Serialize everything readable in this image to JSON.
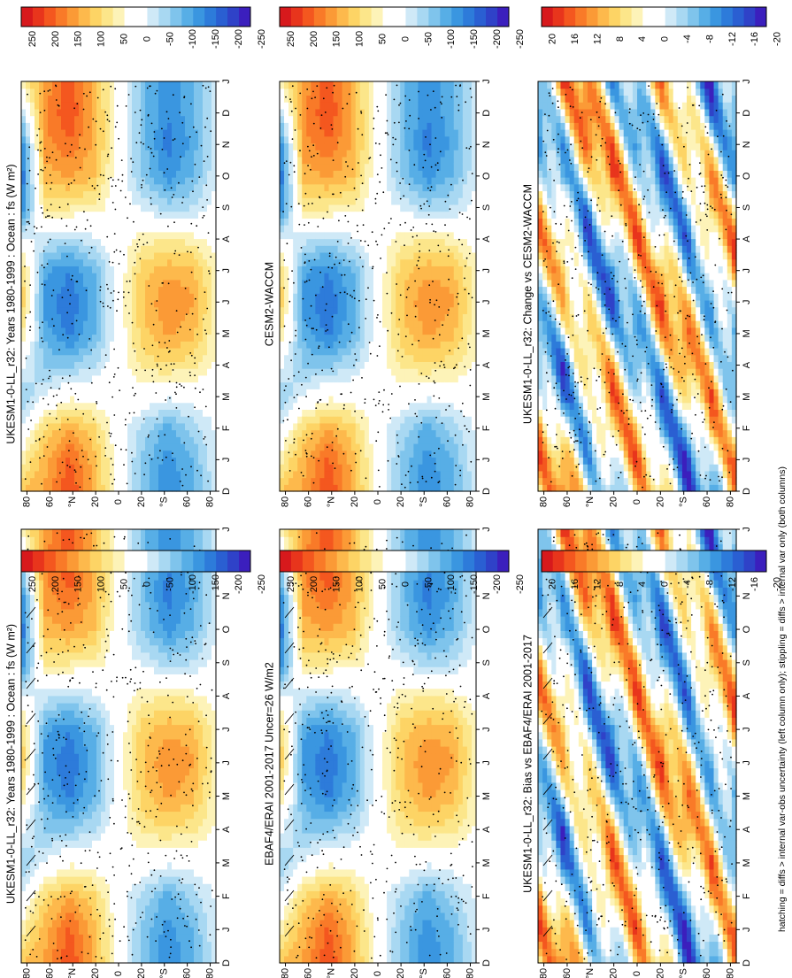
{
  "figure": {
    "footnote": "hatching = diffs > internal var-obs uncertainty (left column only); stippling = diffs > internal var only (both columns)",
    "colorbar_main": {
      "labels": [
        "250",
        "200",
        "150",
        "100",
        "50",
        "0",
        "-50",
        "-100",
        "-150",
        "-200",
        "-250"
      ],
      "colors": [
        "#d7191c",
        "#e8351c",
        "#f4571f",
        "#f97a28",
        "#fb9a36",
        "#fdb94c",
        "#fdd465",
        "#fce68a",
        "#fdf3b8",
        "#ffffff",
        "#ffffff",
        "#cfe9f7",
        "#a8d8f2",
        "#7fc4ec",
        "#57aee6",
        "#3a96e0",
        "#2d7bda",
        "#2a5fd2",
        "#2f42c8",
        "#3b1fbd"
      ]
    },
    "colorbar_diff": {
      "labels": [
        "20",
        "16",
        "12",
        "8",
        "4",
        "0",
        "-4",
        "-8",
        "-12",
        "-16",
        "-20"
      ],
      "colors": [
        "#d7191c",
        "#e8351c",
        "#f4571f",
        "#f97a28",
        "#fb9a36",
        "#fdb94c",
        "#fdd465",
        "#fce68a",
        "#fdf3b8",
        "#ffffff",
        "#ffffff",
        "#cfe9f7",
        "#a8d8f2",
        "#7fc4ec",
        "#57aee6",
        "#3a96e0",
        "#2d7bda",
        "#2a5fd2",
        "#2f42c8",
        "#3b1fbd"
      ]
    }
  },
  "chart_data": [
    {
      "type": "heatmap",
      "panel": "UKESM1-0-LL_r32 1980-1999 (left)",
      "title": "UKESM1-0-LL_r32: Years 1980-1999 : Ocean : fs (W m²)",
      "x_ticks": [
        "D",
        "J",
        "F",
        "M",
        "A",
        "M",
        "J",
        "J",
        "A",
        "S",
        "O",
        "N",
        "D",
        "J"
      ],
      "y_ticks": [
        "80",
        "60",
        "°N",
        "20",
        "0",
        "20",
        "°S",
        "60",
        "80"
      ],
      "y_range": [
        -90,
        90
      ],
      "colorbar_labels": [
        "250",
        "200",
        "150",
        "100",
        "50",
        "0",
        "-50",
        "-100",
        "-150",
        "-200",
        "-250"
      ],
      "values_description_lat": [
        80,
        60,
        40,
        20,
        0,
        -20,
        -40,
        -60,
        -80
      ],
      "values": [
        [
          100,
          40,
          -20,
          -80,
          -20,
          60,
          100,
          90,
          -10,
          -150,
          -180,
          -160,
          -60,
          40
        ],
        [
          130,
          120,
          80,
          -20,
          -80,
          -110,
          -140,
          -120,
          -40,
          60,
          110,
          140,
          150,
          130
        ],
        [
          200,
          180,
          120,
          20,
          -80,
          -160,
          -170,
          -150,
          -60,
          50,
          130,
          170,
          200,
          190
        ],
        [
          120,
          110,
          80,
          10,
          -50,
          -100,
          -110,
          -100,
          -30,
          40,
          100,
          120,
          120,
          110
        ],
        [
          0,
          0,
          0,
          0,
          0,
          0,
          0,
          0,
          0,
          0,
          0,
          0,
          0,
          0
        ],
        [
          -90,
          -80,
          -60,
          0,
          60,
          90,
          100,
          90,
          40,
          -30,
          -80,
          -90,
          -90,
          -90
        ],
        [
          -150,
          -140,
          -110,
          -20,
          70,
          130,
          150,
          120,
          50,
          -60,
          -140,
          -160,
          -150,
          -150
        ],
        [
          -110,
          -100,
          -70,
          -10,
          60,
          110,
          130,
          110,
          40,
          -50,
          -100,
          -120,
          -110,
          -110
        ],
        [
          -30,
          -30,
          -20,
          0,
          20,
          30,
          40,
          30,
          10,
          -10,
          -30,
          -30,
          -30,
          -30
        ]
      ]
    },
    {
      "type": "heatmap",
      "panel": "UKESM1-0-LL_r32 1980-1999 (right)",
      "title": "UKESM1-0-LL_r32: Years 1980-1999 : Ocean : fs (W m²)",
      "x_ticks": [
        "D",
        "J",
        "F",
        "M",
        "A",
        "M",
        "J",
        "J",
        "A",
        "S",
        "O",
        "N",
        "D",
        "J"
      ],
      "y_ticks": [
        "80",
        "60",
        "°N",
        "20",
        "0",
        "20",
        "°S",
        "60",
        "80"
      ],
      "colorbar_labels": [
        "250",
        "200",
        "150",
        "100",
        "50",
        "0",
        "-50",
        "-100",
        "-150",
        "-200",
        "-250"
      ]
    },
    {
      "type": "heatmap",
      "panel": "EBAF4/ERAI 2001-2017",
      "title": "EBAF4/ERAI 2001-2017 Uncer=26 W/m2",
      "x_ticks": [
        "D",
        "J",
        "F",
        "M",
        "A",
        "M",
        "J",
        "J",
        "A",
        "S",
        "O",
        "N",
        "D",
        "J"
      ],
      "y_ticks": [
        "80",
        "60",
        "°N",
        "20",
        "0",
        "20",
        "°S",
        "60",
        "80"
      ],
      "colorbar_labels": [
        "250",
        "200",
        "150",
        "100",
        "50",
        "0",
        "-50",
        "-100",
        "-150",
        "-200",
        "-250"
      ]
    },
    {
      "type": "heatmap",
      "panel": "CESM2-WACCM",
      "title": "CESM2-WACCM",
      "x_ticks": [
        "D",
        "J",
        "F",
        "M",
        "A",
        "M",
        "J",
        "J",
        "A",
        "S",
        "O",
        "N",
        "D",
        "J"
      ],
      "y_ticks": [
        "80",
        "60",
        "°N",
        "20",
        "0",
        "20",
        "°S",
        "60",
        "80"
      ],
      "colorbar_labels": [
        "250",
        "200",
        "150",
        "100",
        "50",
        "0",
        "-50",
        "-100",
        "-150",
        "-200",
        "-250"
      ]
    },
    {
      "type": "heatmap",
      "panel": "Bias vs EBAF4/ERAI",
      "title": "UKESM1-0-LL_r32: Bias vs EBAF4/ERAI 2001-2017",
      "x_ticks": [
        "D",
        "J",
        "F",
        "M",
        "A",
        "M",
        "J",
        "J",
        "A",
        "S",
        "O",
        "N",
        "D",
        "J"
      ],
      "y_ticks": [
        "80",
        "60",
        "°N",
        "20",
        "0",
        "20",
        "°S",
        "60",
        "80"
      ],
      "colorbar_labels": [
        "20",
        "16",
        "12",
        "8",
        "4",
        "0",
        "-4",
        "-8",
        "-12",
        "-16",
        "-20"
      ]
    },
    {
      "type": "heatmap",
      "panel": "Change vs CESM2-WACCM",
      "title": "UKESM1-0-LL_r32: Change vs CESM2-WACCM",
      "x_ticks": [
        "D",
        "J",
        "F",
        "M",
        "A",
        "M",
        "J",
        "J",
        "A",
        "S",
        "O",
        "N",
        "D",
        "J"
      ],
      "y_ticks": [
        "80",
        "60",
        "°N",
        "20",
        "0",
        "20",
        "°S",
        "60",
        "80"
      ],
      "colorbar_labels": [
        "20",
        "16",
        "12",
        "8",
        "4",
        "0",
        "-4",
        "-8",
        "-12",
        "-16",
        "-20"
      ]
    }
  ]
}
